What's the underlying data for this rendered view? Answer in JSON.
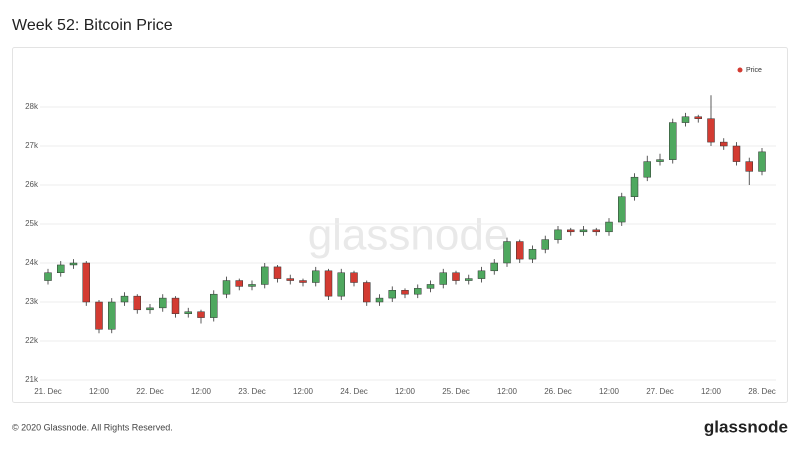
{
  "header": {
    "title": "Week 52: Bitcoin Price"
  },
  "chart_data": {
    "type": "candlestick",
    "watermark": "glassnode",
    "categories": [
      "21. Dec",
      null,
      null,
      null,
      "12:00",
      null,
      null,
      null,
      "22. Dec",
      null,
      null,
      null,
      "12:00",
      null,
      null,
      null,
      "23. Dec",
      null,
      null,
      null,
      "12:00",
      null,
      null,
      null,
      "24. Dec",
      null,
      null,
      null,
      "12:00",
      null,
      null,
      null,
      "25. Dec",
      null,
      null,
      null,
      "12:00",
      null,
      null,
      null,
      "26. Dec",
      null,
      null,
      null,
      "12:00",
      null,
      null,
      null,
      "27. Dec",
      null,
      null,
      null,
      "12:00",
      null,
      null,
      null,
      "28. Dec"
    ],
    "series": [
      {
        "name": "Price",
        "color": "#d33b32",
        "up_color": "#4fa85f",
        "down_color": "#d33b32",
        "open": [
          23550,
          23750,
          23950,
          24000,
          23000,
          22300,
          23000,
          23150,
          22800,
          22850,
          23100,
          22700,
          22750,
          22600,
          23200,
          23550,
          23400,
          23450,
          23900,
          23600,
          23550,
          23500,
          23800,
          23150,
          23750,
          23500,
          23000,
          23100,
          23300,
          23200,
          23350,
          23450,
          23750,
          23550,
          23600,
          23800,
          24000,
          24550,
          24100,
          24350,
          24600,
          24850,
          24800,
          24850,
          24800,
          25050,
          25700,
          26200,
          26600,
          26650,
          27600,
          27750,
          27700,
          27100,
          27000,
          26600,
          26350
        ],
        "high": [
          23850,
          24050,
          24100,
          24050,
          23050,
          23100,
          23250,
          23200,
          22950,
          23200,
          23150,
          22850,
          22800,
          23300,
          23650,
          23600,
          23550,
          24000,
          23950,
          23700,
          23600,
          23900,
          23850,
          23850,
          23800,
          23550,
          23200,
          23400,
          23350,
          23450,
          23550,
          23850,
          23800,
          23700,
          23900,
          24100,
          24650,
          24600,
          24450,
          24700,
          24950,
          24900,
          24950,
          24900,
          25150,
          25800,
          26300,
          26750,
          26800,
          27700,
          27850,
          27800,
          28300,
          27200,
          27100,
          26700,
          26950
        ],
        "low": [
          23450,
          23650,
          23850,
          22900,
          22200,
          22200,
          22900,
          22700,
          22700,
          22750,
          22600,
          22600,
          22450,
          22500,
          23100,
          23300,
          23300,
          23350,
          23500,
          23450,
          23400,
          23400,
          23050,
          23050,
          23400,
          22900,
          22900,
          23000,
          23100,
          23100,
          23250,
          23350,
          23450,
          23450,
          23500,
          23700,
          23900,
          24000,
          24000,
          24250,
          24500,
          24700,
          24700,
          24700,
          24700,
          24950,
          25600,
          26100,
          26500,
          26550,
          27500,
          27600,
          27000,
          26900,
          26500,
          26000,
          26250
        ],
        "close": [
          23750,
          23950,
          24000,
          23000,
          22300,
          23000,
          23150,
          22800,
          22850,
          23100,
          22700,
          22750,
          22600,
          23200,
          23550,
          23400,
          23450,
          23900,
          23600,
          23550,
          23500,
          23800,
          23150,
          23750,
          23500,
          23000,
          23100,
          23300,
          23200,
          23350,
          23450,
          23750,
          23550,
          23600,
          23800,
          24000,
          24550,
          24100,
          24350,
          24600,
          24850,
          24800,
          24850,
          24800,
          25050,
          25700,
          26200,
          26600,
          26650,
          27600,
          27750,
          27700,
          27100,
          27000,
          26600,
          26350,
          26850
        ]
      }
    ],
    "ylim": [
      21000,
      29000
    ],
    "yticks": [
      {
        "value": 21000,
        "label": "21k"
      },
      {
        "value": 22000,
        "label": "22k"
      },
      {
        "value": 23000,
        "label": "23k"
      },
      {
        "value": 24000,
        "label": "24k"
      },
      {
        "value": 25000,
        "label": "25k"
      },
      {
        "value": 26000,
        "label": "26k"
      },
      {
        "value": 27000,
        "label": "27k"
      },
      {
        "value": 28000,
        "label": "28k"
      }
    ],
    "grid": true,
    "legend": "top-right"
  },
  "footer": {
    "copyright": "© 2020 Glassnode. All Rights Reserved.",
    "brand": "glassnode"
  }
}
